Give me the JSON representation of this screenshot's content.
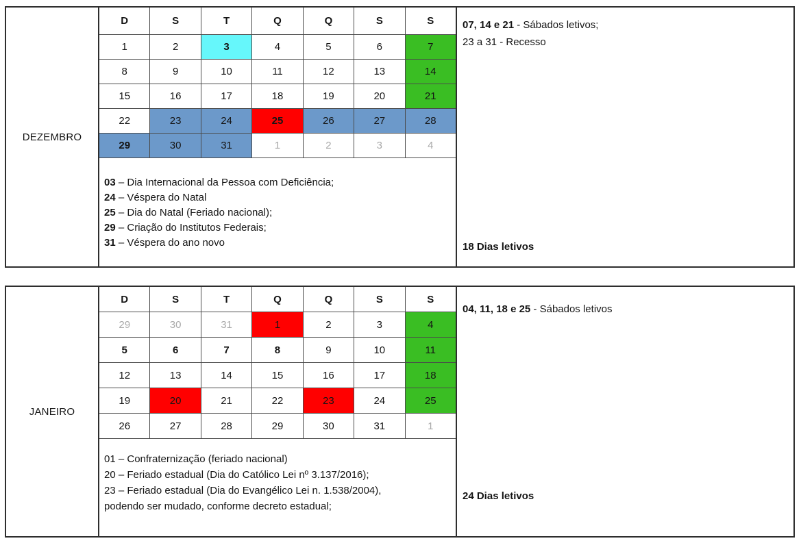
{
  "colors": {
    "saturday_letivo_green": "#3ABE23",
    "recesso_blue": "#6C99CA",
    "feriado_red": "#FF0000",
    "highlight_cyan": "#66F7FB",
    "adjacent_month_gray": "#A9A9A9",
    "grid_border": "#4a4a4a"
  },
  "months": [
    {
      "name": "DEZEMBRO",
      "day_headers": [
        "D",
        "S",
        "T",
        "Q",
        "Q",
        "S",
        "S"
      ],
      "weeks": [
        [
          {
            "v": "1"
          },
          {
            "v": "2"
          },
          {
            "v": "3",
            "bg": "cyan",
            "bold": true
          },
          {
            "v": "4"
          },
          {
            "v": "5"
          },
          {
            "v": "6"
          },
          {
            "v": "7",
            "bg": "green"
          }
        ],
        [
          {
            "v": "8"
          },
          {
            "v": "9"
          },
          {
            "v": "10"
          },
          {
            "v": "11"
          },
          {
            "v": "12"
          },
          {
            "v": "13"
          },
          {
            "v": "14",
            "bg": "green"
          }
        ],
        [
          {
            "v": "15"
          },
          {
            "v": "16"
          },
          {
            "v": "17"
          },
          {
            "v": "18"
          },
          {
            "v": "19"
          },
          {
            "v": "20"
          },
          {
            "v": "21",
            "bg": "green"
          }
        ],
        [
          {
            "v": "22"
          },
          {
            "v": "23",
            "bg": "blue"
          },
          {
            "v": "24",
            "bg": "blue"
          },
          {
            "v": "25",
            "bg": "red",
            "bold": true
          },
          {
            "v": "26",
            "bg": "blue"
          },
          {
            "v": "27",
            "bg": "blue"
          },
          {
            "v": "28",
            "bg": "blue"
          }
        ],
        [
          {
            "v": "29",
            "bg": "blue",
            "bold": true
          },
          {
            "v": "30",
            "bg": "blue"
          },
          {
            "v": "31",
            "bg": "blue"
          },
          {
            "v": "1",
            "muted": true
          },
          {
            "v": "2",
            "muted": true
          },
          {
            "v": "3",
            "muted": true
          },
          {
            "v": "4",
            "muted": true
          }
        ]
      ],
      "notes": [
        {
          "bold": "03",
          "text": " – Dia Internacional da Pessoa com Deficiência;"
        },
        {
          "bold": "24",
          "text": " – Véspera do Natal"
        },
        {
          "bold": "25",
          "text": " – Dia do Natal (Feriado nacional);"
        },
        {
          "bold": "29",
          "text": " – Criação do Institutos Federais;"
        },
        {
          "bold": "31",
          "text": " – Véspera do ano novo"
        }
      ],
      "info_top": [
        {
          "bold": "07, 14 e 21",
          "text": " - Sábados letivos;"
        },
        {
          "bold": "",
          "text": "23 a 31 - Recesso"
        }
      ],
      "info_bottom": "18 Dias letivos"
    },
    {
      "name": "JANEIRO",
      "day_headers": [
        "D",
        "S",
        "T",
        "Q",
        "Q",
        "S",
        "S"
      ],
      "weeks": [
        [
          {
            "v": "29",
            "muted": true
          },
          {
            "v": "30",
            "muted": true
          },
          {
            "v": "31",
            "muted": true
          },
          {
            "v": "1",
            "bg": "red"
          },
          {
            "v": "2"
          },
          {
            "v": "3"
          },
          {
            "v": "4",
            "bg": "green"
          }
        ],
        [
          {
            "v": "5",
            "bold": true
          },
          {
            "v": "6",
            "bold": true
          },
          {
            "v": "7",
            "bold": true
          },
          {
            "v": "8",
            "bold": true
          },
          {
            "v": "9"
          },
          {
            "v": "10"
          },
          {
            "v": "11",
            "bg": "green"
          }
        ],
        [
          {
            "v": "12"
          },
          {
            "v": "13"
          },
          {
            "v": "14"
          },
          {
            "v": "15"
          },
          {
            "v": "16"
          },
          {
            "v": "17"
          },
          {
            "v": "18",
            "bg": "green"
          }
        ],
        [
          {
            "v": "19"
          },
          {
            "v": "20",
            "bg": "red"
          },
          {
            "v": "21"
          },
          {
            "v": "22"
          },
          {
            "v": "23",
            "bg": "red"
          },
          {
            "v": "24"
          },
          {
            "v": "25",
            "bg": "green"
          }
        ],
        [
          {
            "v": "26"
          },
          {
            "v": "27"
          },
          {
            "v": "28"
          },
          {
            "v": "29"
          },
          {
            "v": "30"
          },
          {
            "v": "31"
          },
          {
            "v": "1",
            "muted": true
          }
        ]
      ],
      "notes": [
        {
          "bold": "",
          "text": "01 – Confraternização (feriado nacional)"
        },
        {
          "bold": "",
          "text": "20 – Feriado estadual (Dia do Católico Lei nº 3.137/2016);"
        },
        {
          "bold": "",
          "text": "23 – Feriado estadual (Dia do Evangélico Lei n. 1.538/2004),"
        },
        {
          "bold": "",
          "text": "podendo ser mudado, conforme decreto estadual;"
        }
      ],
      "info_top": [
        {
          "bold": "04, 11, 18 e 25",
          "text": " - Sábados letivos"
        }
      ],
      "info_bottom": "24 Dias letivos"
    }
  ]
}
